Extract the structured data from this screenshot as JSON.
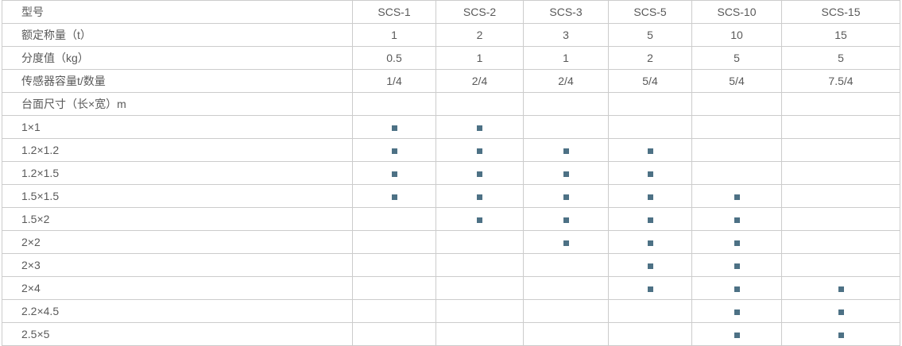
{
  "colors": {
    "text": "#595959",
    "border": "#cccccc",
    "marker": "#4d7185",
    "background": "#ffffff"
  },
  "marker_glyph": "▪",
  "table": {
    "columns": [
      "型号",
      "SCS-1",
      "SCS-2",
      "SCS-3",
      "SCS-5",
      "SCS-10",
      "SCS-15"
    ],
    "rows": [
      {
        "label": "额定称量（t）",
        "cells": [
          "1",
          "2",
          "3",
          "5",
          "10",
          "15"
        ]
      },
      {
        "label": "分度值（kg）",
        "cells": [
          "0.5",
          "1",
          "1",
          "2",
          "5",
          "5"
        ]
      },
      {
        "label": "传感器容量t/数量",
        "cells": [
          "1/4",
          "2/4",
          "2/4",
          "5/4",
          "5/4",
          "7.5/4"
        ]
      },
      {
        "label": "台面尺寸（长×宽）m",
        "cells": [
          "",
          "",
          "",
          "",
          "",
          ""
        ]
      },
      {
        "label": "1×1",
        "cells": [
          "▪",
          "▪",
          "",
          "",
          "",
          ""
        ]
      },
      {
        "label": "1.2×1.2",
        "cells": [
          "▪",
          "▪",
          "▪",
          "▪",
          "",
          ""
        ]
      },
      {
        "label": "1.2×1.5",
        "cells": [
          "▪",
          "▪",
          "▪",
          "▪",
          "",
          ""
        ]
      },
      {
        "label": "1.5×1.5",
        "cells": [
          "▪",
          "▪",
          "▪",
          "▪",
          "▪",
          ""
        ]
      },
      {
        "label": "1.5×2",
        "cells": [
          "",
          "▪",
          "▪",
          "▪",
          "▪",
          ""
        ]
      },
      {
        "label": "2×2",
        "cells": [
          "",
          "",
          "▪",
          "▪",
          "▪",
          ""
        ]
      },
      {
        "label": "2×3",
        "cells": [
          "",
          "",
          "",
          "▪",
          "▪",
          ""
        ]
      },
      {
        "label": "2×4",
        "cells": [
          "",
          "",
          "",
          "▪",
          "▪",
          "▪"
        ]
      },
      {
        "label": "2.2×4.5",
        "cells": [
          "",
          "",
          "",
          "",
          "▪",
          "▪"
        ]
      },
      {
        "label": "2.5×5",
        "cells": [
          "",
          "",
          "",
          "",
          "▪",
          "▪"
        ]
      }
    ]
  }
}
